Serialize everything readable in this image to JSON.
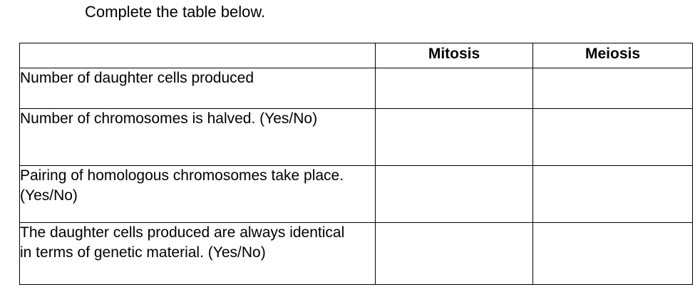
{
  "instruction": "Complete the table below.",
  "table": {
    "headers": [
      "",
      "Mitosis",
      "Meiosis"
    ],
    "rows": [
      {
        "label": "Number of daughter cells produced",
        "mitosis": "",
        "meiosis": ""
      },
      {
        "label": "Number of chromosomes is halved. (Yes/No)",
        "mitosis": "",
        "meiosis": ""
      },
      {
        "label": "Pairing of homologous chromosomes take place. (Yes/No)",
        "mitosis": "",
        "meiosis": ""
      },
      {
        "label": "The daughter cells produced are always identical in terms of genetic material. (Yes/No)",
        "mitosis": "",
        "meiosis": ""
      }
    ]
  }
}
